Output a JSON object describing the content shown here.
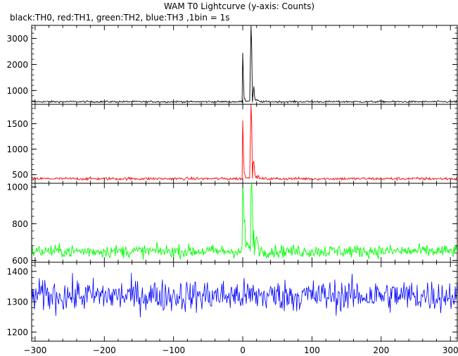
{
  "title": "WAM T0 Lightcurve (y-axis: Counts)",
  "subtitle": "black:TH0, red:TH1, green:TH2, blue:TH3 ,1bin = 1s",
  "chart_data": {
    "type": "line",
    "title": "WAM T0 Lightcurve (y-axis: Counts)",
    "subtitle": "black:TH0, red:TH1, green:TH2, blue:TH3 ,1bin = 1s",
    "xlabel": "",
    "ylabel": "",
    "xlim": [
      -305,
      310
    ],
    "xticks": [
      -300,
      -200,
      -100,
      0,
      100,
      200,
      300
    ],
    "x_step": 1,
    "panels": [
      {
        "name": "TH0",
        "color": "#000000",
        "ylim": [
          470,
          3500
        ],
        "yticks": [
          1000,
          2000,
          3000
        ],
        "baseline": 570,
        "noise": 25,
        "features": [
          {
            "x": 0,
            "value": 2450
          },
          {
            "x": 1,
            "value": 1500
          },
          {
            "x": 11,
            "value": 2100
          },
          {
            "x": 12,
            "value": 3500
          },
          {
            "x": 13,
            "value": 2600
          },
          {
            "x": 15,
            "value": 900
          },
          {
            "x": 16,
            "value": 1150
          },
          {
            "x": 17,
            "value": 800
          }
        ]
      },
      {
        "name": "TH1",
        "color": "#ff0000",
        "ylim": [
          330,
          1880
        ],
        "yticks": [
          500,
          1000,
          1500
        ],
        "baseline": 420,
        "noise": 20,
        "features": [
          {
            "x": 0,
            "value": 1560
          },
          {
            "x": 1,
            "value": 1000
          },
          {
            "x": 11,
            "value": 1200
          },
          {
            "x": 12,
            "value": 1880
          },
          {
            "x": 13,
            "value": 1500
          },
          {
            "x": 15,
            "value": 720
          },
          {
            "x": 16,
            "value": 760
          },
          {
            "x": 17,
            "value": 600
          }
        ]
      },
      {
        "name": "TH2",
        "color": "#00ff00",
        "ylim": [
          590,
          1020
        ],
        "yticks": [
          600,
          800,
          1000
        ],
        "baseline": 650,
        "noise": 25,
        "features": [
          {
            "x": 0,
            "value": 1020
          },
          {
            "x": 1,
            "value": 930
          },
          {
            "x": 12,
            "value": 990
          },
          {
            "x": 13,
            "value": 1005
          },
          {
            "x": 14,
            "value": 900
          },
          {
            "x": 16,
            "value": 780
          }
        ]
      },
      {
        "name": "TH3",
        "color": "#0000ff",
        "ylim": [
          1170,
          1430
        ],
        "yticks": [
          1200,
          1300,
          1400
        ],
        "baseline": 1320,
        "noise": 38,
        "features": []
      }
    ]
  }
}
